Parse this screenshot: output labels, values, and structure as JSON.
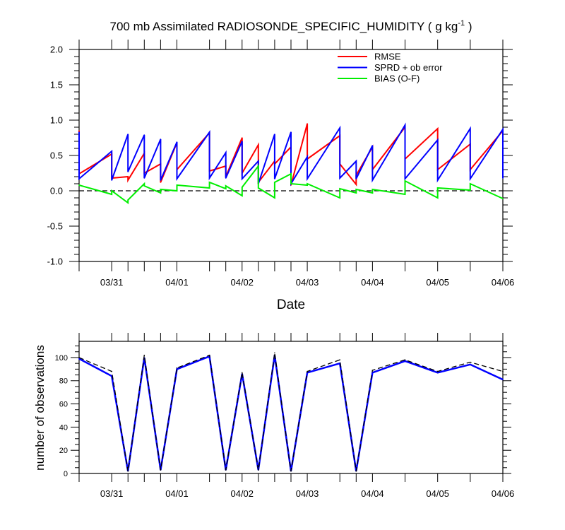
{
  "chart_data": [
    {
      "type": "line",
      "title": "700 mb Assimilated RADIOSONDE_SPECIFIC_HUMIDITY ( g kg",
      "title_exponent": "-1",
      "title_suffix": " )",
      "xlabel": "Date",
      "xlim": [
        -0.5,
        6.0
      ],
      "ylim": [
        -1.0,
        2.0
      ],
      "x": [
        -0.5,
        0,
        0.25,
        0.5,
        0.75,
        1.0,
        1.5,
        1.75,
        2.0,
        2.25,
        2.5,
        2.75,
        3.0,
        3.5,
        3.75,
        4.0,
        4.5,
        5.0,
        5.5,
        6.0
      ],
      "xticks": [
        0,
        1,
        2,
        3,
        4,
        5,
        6
      ],
      "xticklabels": [
        "03/31",
        "04/01",
        "04/02",
        "04/03",
        "04/04",
        "04/05",
        "04/06"
      ],
      "yticks": [
        2.0,
        1.5,
        1.0,
        0.5,
        0.0,
        -0.5,
        -1.0
      ],
      "yticklabels": [
        "2.0",
        "1.5",
        "1.0",
        "0.5",
        "0.0",
        "-0.5",
        "-1.0"
      ],
      "yminor_step": 0.1,
      "reference_line": 0.0,
      "grid": false,
      "legend_position": "top-right",
      "series": [
        {
          "name": "RMSE",
          "color": "#ff0000",
          "prior": [
            0.85,
            0.52,
            0.2,
            0.53,
            0.38,
            0.68,
            0.82,
            0.35,
            0.75,
            0.65,
            0.42,
            0.62,
            0.95,
            0.78,
            0.09,
            0.62,
            0.9,
            0.88,
            0.66,
            0.85
          ],
          "posterior": [
            0.24,
            0.18,
            0.15,
            0.25,
            0.12,
            0.3,
            0.28,
            0.2,
            0.25,
            0.12,
            0.38,
            0.08,
            0.45,
            0.38,
            0.22,
            0.3,
            0.45,
            0.3,
            0.3,
            0.2
          ]
        },
        {
          "name": "SPRD + ob error",
          "color": "#0000ff",
          "prior": [
            0.83,
            0.56,
            0.8,
            0.79,
            0.73,
            0.69,
            0.83,
            0.54,
            0.7,
            0.42,
            0.8,
            0.83,
            0.48,
            0.89,
            0.42,
            0.64,
            0.93,
            0.72,
            0.88,
            0.87
          ],
          "posterior": [
            0.17,
            0.15,
            0.27,
            0.18,
            0.15,
            0.17,
            0.18,
            0.18,
            0.17,
            0.1,
            0.17,
            0.1,
            0.17,
            0.18,
            0.17,
            0.15,
            0.17,
            0.15,
            0.17,
            0.18
          ]
        },
        {
          "name": "BIAS (O-F)",
          "color": "#00ee00",
          "prior": [
            0.08,
            -0.05,
            -0.17,
            0.1,
            -0.03,
            0.0,
            0.04,
            0.03,
            -0.07,
            0.35,
            -0.1,
            0.24,
            0.08,
            -0.1,
            -0.03,
            -0.03,
            -0.05,
            -0.1,
            0.01,
            -0.11
          ],
          "posterior": [
            0.08,
            0.0,
            -0.13,
            0.07,
            0.02,
            0.08,
            0.12,
            0.07,
            0.05,
            0.04,
            0.12,
            0.1,
            0.1,
            0.03,
            0.02,
            0.02,
            0.14,
            0.04,
            0.1,
            -0.11
          ]
        }
      ]
    },
    {
      "type": "line",
      "ylabel": "number of observations",
      "xlim": [
        -0.5,
        6.0
      ],
      "ylim": [
        0,
        114
      ],
      "x": [
        -0.5,
        0,
        0.25,
        0.5,
        0.75,
        1.0,
        1.5,
        1.75,
        2.0,
        2.25,
        2.5,
        2.75,
        3.0,
        3.5,
        3.75,
        4.0,
        4.5,
        5.0,
        5.5,
        6.0
      ],
      "xticks": [
        0,
        1,
        2,
        3,
        4,
        5,
        6
      ],
      "xticklabels": [
        "03/31",
        "04/01",
        "04/02",
        "04/03",
        "04/04",
        "04/05",
        "04/06"
      ],
      "yticks": [
        0,
        20,
        40,
        60,
        80,
        100
      ],
      "yticklabels": [
        "0",
        "20",
        "40",
        "60",
        "80",
        "100"
      ],
      "yminor_step": 5,
      "grid": false,
      "series": [
        {
          "color": "#0000ff",
          "dashed": false,
          "values": [
            99,
            84,
            2,
            100,
            3,
            90,
            101,
            3,
            86,
            3,
            102,
            2,
            87,
            95,
            2,
            87,
            97,
            87,
            94,
            81
          ]
        },
        {
          "color": "#000000",
          "dashed": true,
          "values": [
            100,
            88,
            2,
            102,
            3,
            91,
            102,
            3,
            87,
            3,
            104,
            2,
            88,
            98,
            2,
            89,
            98,
            88,
            96,
            88
          ]
        }
      ]
    }
  ]
}
